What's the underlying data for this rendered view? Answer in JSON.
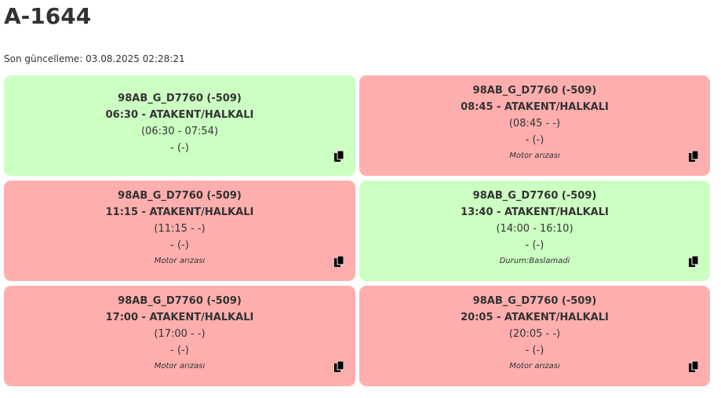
{
  "page": {
    "title": "A-1644",
    "updated_label": "Son güncelleme: 03.08.2025 02:28:21"
  },
  "icons": {
    "copy": "copy-icon"
  },
  "colors": {
    "ok": "#ccffc2",
    "bad": "#ffaeae"
  },
  "cards": [
    {
      "status": "ok",
      "vehicle": "98AB_G_D7760 (-509)",
      "trip": "06:30 - ATAKENT/HALKALI",
      "times": "(06:30 - 07:54)",
      "extra": "- (-)",
      "note": ""
    },
    {
      "status": "bad",
      "vehicle": "98AB_G_D7760 (-509)",
      "trip": "08:45 - ATAKENT/HALKALI",
      "times": "(08:45 - -)",
      "extra": "- (-)",
      "note": "Motor arızası"
    },
    {
      "status": "bad",
      "vehicle": "98AB_G_D7760 (-509)",
      "trip": "11:15 - ATAKENT/HALKALI",
      "times": "(11:15 - -)",
      "extra": "- (-)",
      "note": "Motor arızası"
    },
    {
      "status": "ok",
      "vehicle": "98AB_G_D7760 (-509)",
      "trip": "13:40 - ATAKENT/HALKALI",
      "times": "(14:00 - 16:10)",
      "extra": "- (-)",
      "note": "Durum:Baslamadi"
    },
    {
      "status": "bad",
      "vehicle": "98AB_G_D7760 (-509)",
      "trip": "17:00 - ATAKENT/HALKALI",
      "times": "(17:00 - -)",
      "extra": "- (-)",
      "note": "Motor arızası"
    },
    {
      "status": "bad",
      "vehicle": "98AB_G_D7760 (-509)",
      "trip": "20:05 - ATAKENT/HALKALI",
      "times": "(20:05 - -)",
      "extra": "- (-)",
      "note": "Motor arızası"
    }
  ]
}
